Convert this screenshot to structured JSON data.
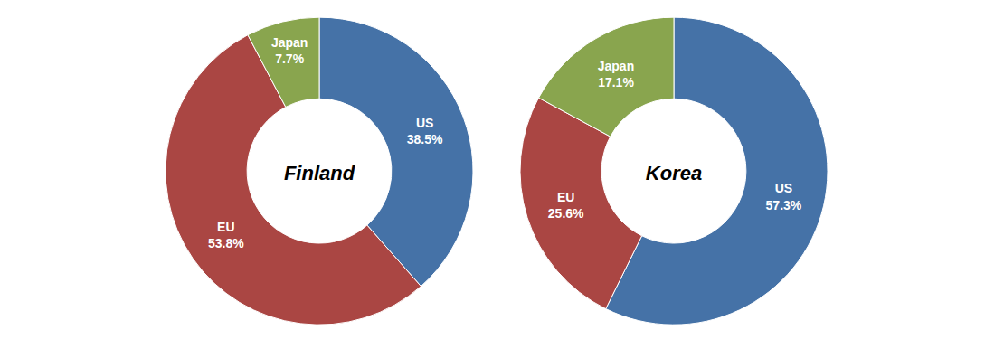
{
  "chart_data": [
    {
      "type": "pie",
      "title": "Finland",
      "categories": [
        "US",
        "EU",
        "Japan"
      ],
      "values": [
        38.5,
        53.8,
        7.7
      ],
      "value_labels": [
        "38.5%",
        "53.8%",
        "7.7%"
      ],
      "colors": [
        "#4572a7",
        "#aa4643",
        "#89a54e"
      ],
      "data_labels": true
    },
    {
      "type": "pie",
      "title": "Korea",
      "categories": [
        "US",
        "EU",
        "Japan"
      ],
      "values": [
        57.3,
        25.6,
        17.1
      ],
      "value_labels": [
        "57.3%",
        "25.6%",
        "17.1%"
      ],
      "colors": [
        "#4572a7",
        "#aa4643",
        "#89a54e"
      ],
      "data_labels": true
    }
  ]
}
